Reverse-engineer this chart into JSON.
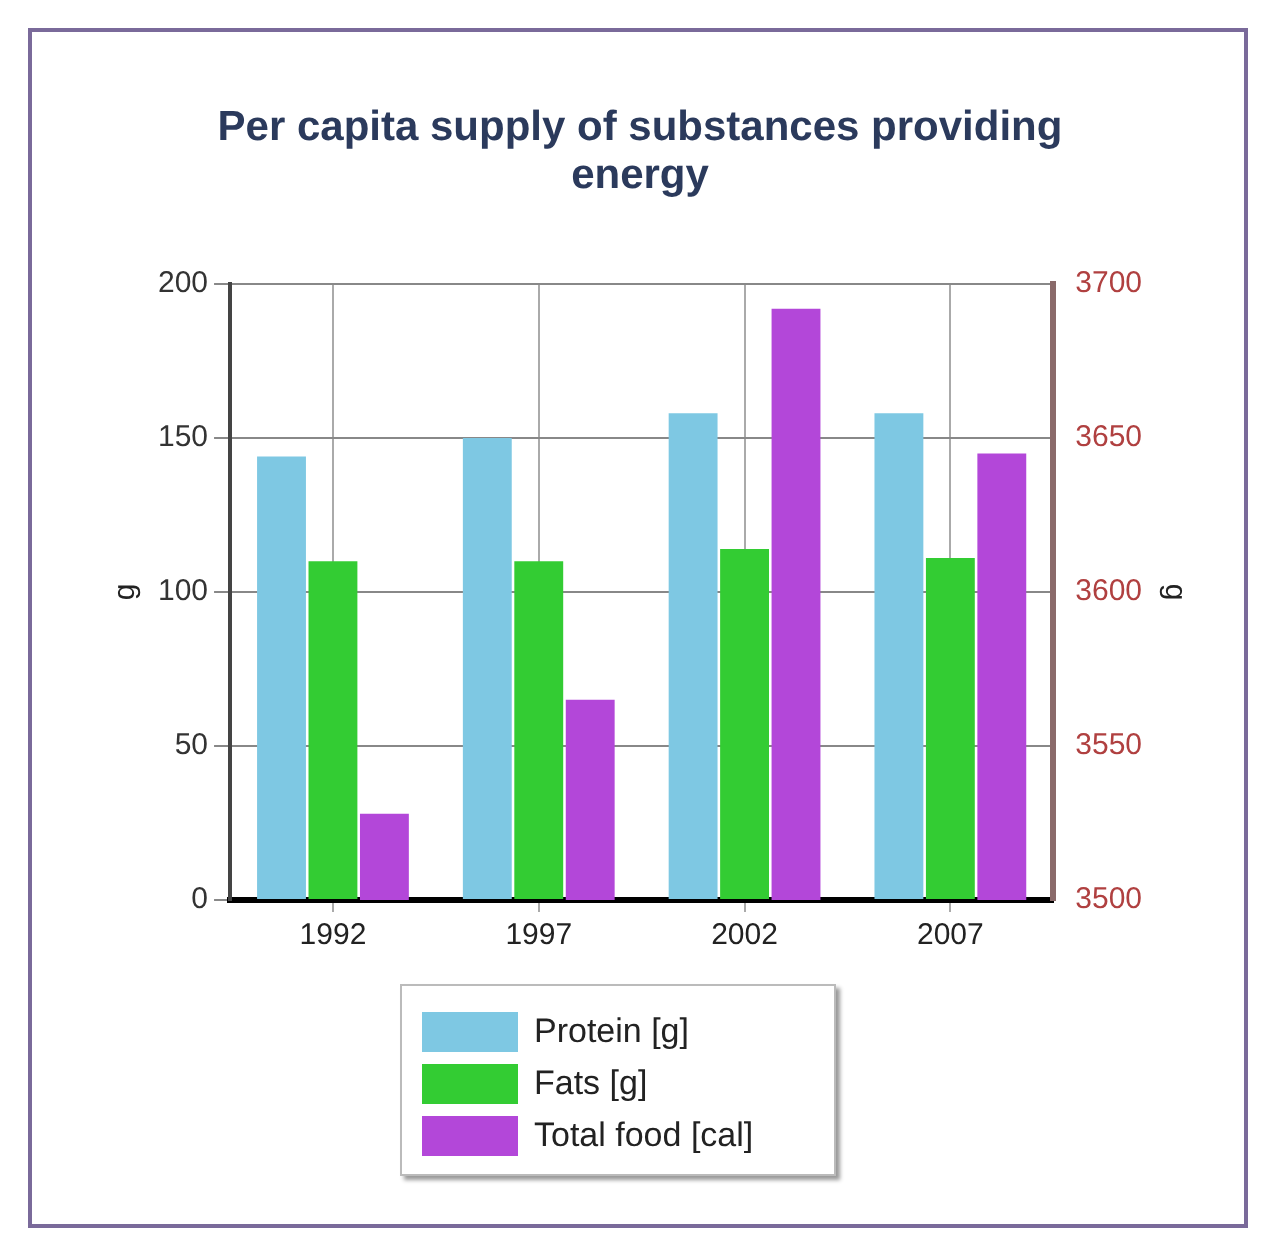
{
  "chart_data": {
    "type": "bar",
    "title": "Per capita supply of substances providing energy",
    "categories": [
      "1992",
      "1997",
      "2002",
      "2007"
    ],
    "series": [
      {
        "name": "Protein [g]",
        "color": "#7ec8e3",
        "values": [
          144,
          150,
          158,
          158
        ]
      },
      {
        "name": "Fats [g]",
        "color": "#33cc33",
        "values": [
          110,
          110,
          114,
          111
        ]
      },
      {
        "name": "Total food [cal]",
        "color": "#b347d9",
        "values": [
          3528,
          3565,
          3692,
          3645
        ],
        "axis": "y2"
      }
    ],
    "ylabel": "g",
    "y2label": "g",
    "ylim": [
      0,
      200
    ],
    "yticks": [
      0,
      50,
      100,
      150,
      200
    ],
    "y2lim": [
      3500,
      3700
    ],
    "y2ticks": [
      3500,
      3550,
      3600,
      3650,
      3700
    ],
    "grid": true,
    "legend": "bottom"
  }
}
